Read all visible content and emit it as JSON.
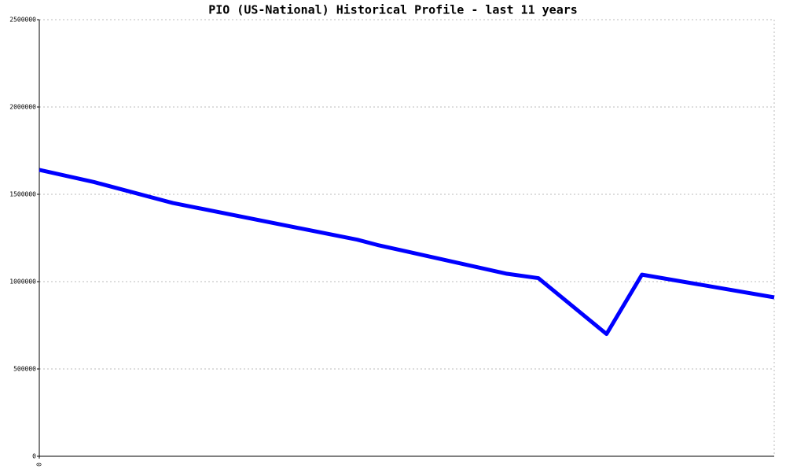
{
  "chart_data": {
    "type": "line",
    "title": "PIO (US-National) Historical Profile - last 11 years",
    "x": [
      0,
      0.82,
      2.0,
      4.76,
      5.06,
      7.0,
      7.47,
      8.49,
      9.02,
      11
    ],
    "series": [
      {
        "color": "#0000ff",
        "values": [
          1640000,
          1570000,
          1450000,
          1240000,
          1210000,
          1045000,
          1020000,
          700000,
          1040000,
          910000
        ]
      }
    ],
    "xlim": [
      0,
      11
    ],
    "xticks": [
      0
    ],
    "ylim": [
      0,
      2500000
    ],
    "yticks": [
      0,
      500000,
      1000000,
      1500000,
      2000000,
      2500000
    ],
    "grid": true
  }
}
